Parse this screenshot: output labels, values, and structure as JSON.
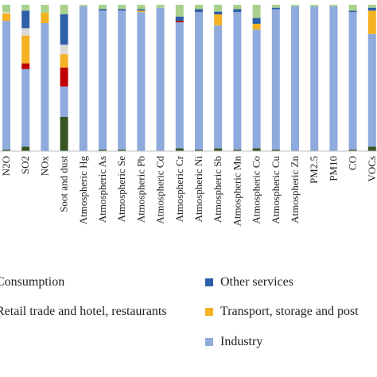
{
  "chart_data": {
    "type": "bar",
    "stacked": true,
    "normalized": true,
    "categories": [
      "N2O",
      "SO2",
      "NOx",
      "Soot and  dust",
      "Atmospheric Hg",
      "Atmospheric As",
      "Atmospheric Se",
      "Atmospheric Pb",
      "Atmospheric Cd",
      "Atmospheric Cr",
      "Atmospheric Ni",
      "Atmospheric Sb",
      "Atmospheric Mn",
      "Atmospheric Co",
      "Atmospheric Cu",
      "Atmospheric Zn",
      "PM2.5",
      "PM10",
      "CO",
      "VOCs"
    ],
    "series": [
      {
        "key": "dark",
        "color": "#375623",
        "values": [
          1,
          3,
          0,
          18,
          0,
          1,
          1,
          0,
          0,
          2,
          1,
          2,
          1,
          2,
          1,
          0,
          0,
          0,
          1,
          3
        ]
      },
      {
        "key": "industry",
        "name": "Industry",
        "color": "#8faadc",
        "values": [
          88,
          53,
          98,
          16,
          99,
          95,
          95,
          95,
          98,
          86,
          94,
          90,
          94,
          81,
          96,
          99,
          99,
          99,
          94,
          77
        ]
      },
      {
        "key": "red",
        "color": "#c00000",
        "values": [
          0,
          4,
          0,
          10,
          0,
          0,
          0,
          0,
          0,
          1,
          0,
          0,
          0,
          0,
          0,
          0,
          0,
          0,
          0,
          0
        ]
      },
      {
        "key": "transport",
        "name": "Transport, storage and post",
        "color": "#f4b223",
        "values": [
          5,
          19,
          8,
          7,
          0,
          0,
          0,
          1,
          0,
          0,
          0,
          8,
          0,
          4,
          0,
          0,
          0,
          0,
          0,
          16
        ]
      },
      {
        "key": "lightgray",
        "color": "#d9d9d9",
        "values": [
          1,
          5,
          0,
          5,
          0,
          0,
          0,
          0,
          0,
          0,
          0,
          0,
          0,
          0,
          0,
          0,
          0,
          0,
          0,
          0
        ]
      },
      {
        "key": "other",
        "name": "Other services",
        "color": "#2e5fa8",
        "values": [
          0,
          12,
          0,
          16,
          0,
          1,
          1,
          1,
          0,
          3,
          2,
          2,
          2,
          4,
          1,
          0,
          0,
          0,
          1,
          2
        ]
      },
      {
        "key": "green",
        "color": "#a9d18e",
        "values": [
          5,
          4,
          6,
          5,
          1,
          3,
          3,
          3,
          2,
          8,
          3,
          5,
          3,
          9,
          2,
          1,
          1,
          1,
          4,
          2
        ]
      }
    ],
    "ylim": [
      0,
      100
    ]
  },
  "legend": [
    {
      "label": "Consumption",
      "color": "#a9d18e",
      "col": 0,
      "row": 0
    },
    {
      "label": "Other services",
      "color": "#2e5fa8",
      "col": 1,
      "row": 0
    },
    {
      "label": "Retail trade and hotel, restaurants",
      "color": "#c00000",
      "col": 0,
      "row": 1
    },
    {
      "label": "Transport, storage and post",
      "color": "#f4b223",
      "col": 1,
      "row": 1
    },
    {
      "label": "Industry",
      "color": "#8faadc",
      "col": 1,
      "row": 2
    }
  ]
}
